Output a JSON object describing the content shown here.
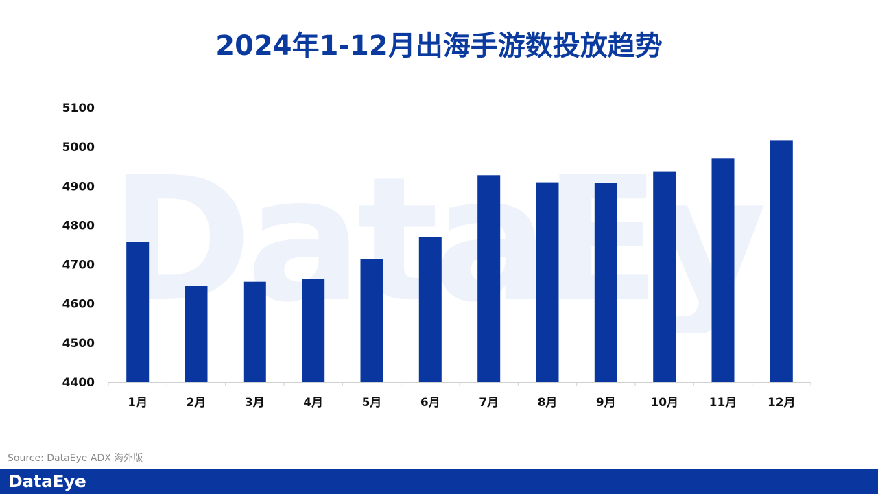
{
  "title": "2024年1-12月出海手游数投放趋势",
  "watermark": "DataEye",
  "source": "Source: DataEye ADX 海外版",
  "footer": {
    "logo": "DataEye"
  },
  "colors": {
    "title": "#0a3a9e",
    "bar": "#0a36a0",
    "footer_bar": "#0a36a0",
    "watermark": "#eef2fa"
  },
  "chart_data": {
    "type": "bar",
    "title": "2024年1-12月出海手游数投放趋势",
    "xlabel": "",
    "ylabel": "",
    "categories": [
      "1月",
      "2月",
      "3月",
      "4月",
      "5月",
      "6月",
      "7月",
      "8月",
      "9月",
      "10月",
      "11月",
      "12月"
    ],
    "values": [
      4758,
      4645,
      4656,
      4663,
      4715,
      4770,
      4928,
      4910,
      4908,
      4938,
      4970,
      5017
    ],
    "ylim": [
      4400,
      5100
    ],
    "yticks": [
      4400,
      4500,
      4600,
      4700,
      4800,
      4900,
      5000,
      5100
    ],
    "grid": false,
    "legend": "none"
  }
}
